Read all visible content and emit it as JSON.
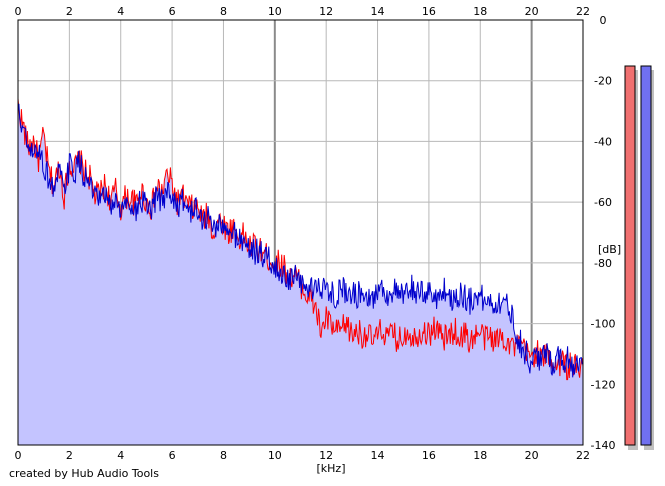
{
  "credit": "created by Hub Audio Tools",
  "chart_data": {
    "type": "line",
    "xlabel": "[kHz]",
    "ylabel": "[dB]",
    "xlim": [
      0,
      22
    ],
    "ylim": [
      -140,
      0
    ],
    "xticks": [
      0,
      2,
      4,
      6,
      8,
      10,
      12,
      14,
      16,
      18,
      20,
      22
    ],
    "yticks": [
      0,
      -20,
      -40,
      -60,
      -80,
      -100,
      -120,
      -140
    ],
    "grid": true,
    "x": [
      0,
      0.2,
      0.4,
      0.6,
      0.8,
      1.0,
      1.2,
      1.4,
      1.6,
      1.8,
      2.0,
      2.2,
      2.4,
      2.6,
      2.8,
      3.0,
      3.2,
      3.4,
      3.6,
      3.8,
      4.0,
      4.2,
      4.4,
      4.6,
      4.8,
      5.0,
      5.2,
      5.4,
      5.6,
      5.8,
      6.0,
      6.2,
      6.4,
      6.6,
      6.8,
      7.0,
      7.2,
      7.4,
      7.6,
      7.8,
      8.0,
      8.2,
      8.4,
      8.6,
      8.8,
      9.0,
      9.2,
      9.4,
      9.6,
      9.8,
      10.0,
      10.2,
      10.4,
      10.6,
      10.8,
      11.0,
      11.2,
      11.4,
      11.6,
      11.8,
      12.0,
      12.2,
      12.4,
      12.6,
      12.8,
      13.0,
      13.2,
      13.4,
      13.6,
      13.8,
      14.0,
      14.2,
      14.4,
      14.6,
      14.8,
      15.0,
      15.2,
      15.4,
      15.6,
      15.8,
      16.0,
      16.2,
      16.4,
      16.6,
      16.8,
      17.0,
      17.2,
      17.4,
      17.6,
      17.8,
      18.0,
      18.2,
      18.4,
      18.6,
      18.8,
      19.0,
      19.2,
      19.4,
      19.6,
      19.8,
      20.0,
      20.2,
      20.4,
      20.6,
      20.8,
      21.0,
      21.2,
      21.4,
      21.6,
      21.8,
      22.0
    ],
    "series": [
      {
        "color": "#ff0000",
        "values": [
          -28,
          -35,
          -42,
          -40,
          -46,
          -38,
          -50,
          -55,
          -48,
          -58,
          -47,
          -49,
          -46,
          -50,
          -52,
          -58,
          -57,
          -54,
          -60,
          -56,
          -62,
          -58,
          -59,
          -61,
          -56,
          -60,
          -62,
          -55,
          -57,
          -51,
          -54,
          -60,
          -58,
          -61,
          -62,
          -62,
          -66,
          -64,
          -70,
          -66,
          -67,
          -70,
          -68,
          -72,
          -71,
          -75,
          -74,
          -76,
          -77,
          -79,
          -80,
          -80,
          -82,
          -85,
          -84,
          -87,
          -90,
          -92,
          -95,
          -103,
          -98,
          -101,
          -103,
          -102,
          -100,
          -104,
          -102,
          -104,
          -103,
          -106,
          -104,
          -102,
          -105,
          -103,
          -106,
          -104,
          -102,
          -105,
          -103,
          -102,
          -104,
          -101,
          -103,
          -105,
          -104,
          -102,
          -105,
          -103,
          -106,
          -104,
          -103,
          -105,
          -104,
          -106,
          -104,
          -105,
          -107,
          -108,
          -107,
          -110,
          -111,
          -109,
          -112,
          -110,
          -112,
          -114,
          -112,
          -115,
          -113,
          -116,
          -114
        ]
      },
      {
        "color": "#0000cc",
        "values": [
          -30,
          -36,
          -43,
          -45,
          -42,
          -48,
          -52,
          -56,
          -50,
          -57,
          -48,
          -50,
          -47,
          -52,
          -54,
          -59,
          -60,
          -58,
          -62,
          -59,
          -63,
          -61,
          -60,
          -63,
          -59,
          -62,
          -64,
          -58,
          -60,
          -56,
          -58,
          -61,
          -60,
          -62,
          -63,
          -63,
          -66,
          -65,
          -68,
          -67,
          -69,
          -71,
          -70,
          -72,
          -73,
          -75,
          -76,
          -77,
          -78,
          -79,
          -82,
          -83,
          -84,
          -86,
          -85,
          -87,
          -88,
          -89,
          -86,
          -90,
          -88,
          -89,
          -91,
          -88,
          -90,
          -89,
          -91,
          -88,
          -90,
          -92,
          -89,
          -88,
          -91,
          -89,
          -90,
          -92,
          -89,
          -88,
          -91,
          -90,
          -89,
          -92,
          -90,
          -89,
          -91,
          -92,
          -90,
          -91,
          -93,
          -90,
          -91,
          -93,
          -92,
          -94,
          -92,
          -94,
          -96,
          -103,
          -107,
          -110,
          -114,
          -110,
          -112,
          -110,
          -113,
          -110,
          -113,
          -111,
          -114,
          -112,
          -113
        ]
      }
    ]
  },
  "level_meters": [
    {
      "color": "#f07070",
      "level": 0.0
    },
    {
      "color": "#7070f0",
      "level": 0.0
    }
  ],
  "colors": {
    "fill": "#c4c4ff",
    "grid": "#b8b8b8",
    "grid_major": "#8a8a8a",
    "border": "#000000"
  }
}
